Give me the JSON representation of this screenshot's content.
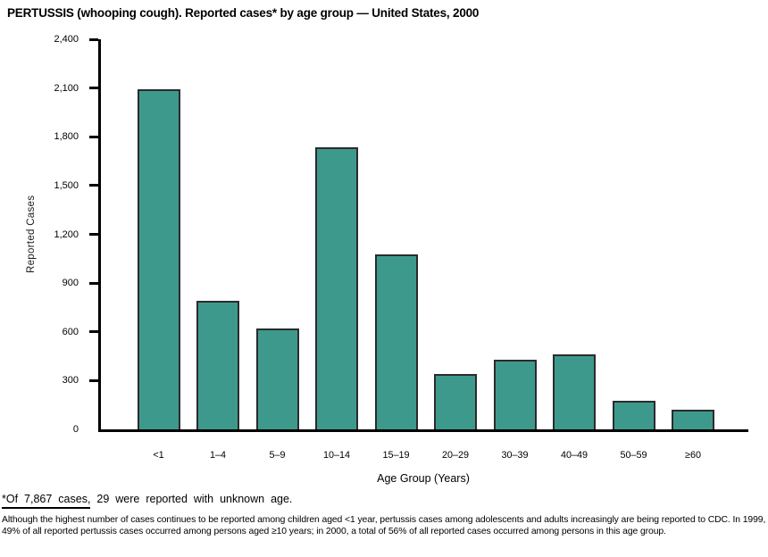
{
  "title": "PERTUSSIS (whooping cough). Reported cases* by age group — United States, 2000",
  "chart_data": {
    "type": "bar",
    "title": "PERTUSSIS (whooping cough). Reported cases* by age group — United States, 2000",
    "categories": [
      "<1",
      "1–4",
      "5–9",
      "10–14",
      "15–19",
      "20–29",
      "30–39",
      "40–49",
      "50–59",
      "≥60"
    ],
    "values": [
      2095,
      790,
      620,
      1735,
      1075,
      340,
      430,
      460,
      175,
      120
    ],
    "xlabel": "Age Group (Years)",
    "ylabel": "Reported Cases",
    "ylim": [
      0,
      2400
    ],
    "ytick_interval": 300,
    "ytick_labels": [
      "0",
      "300",
      "600",
      "900",
      "1,200",
      "1,500",
      "1,800",
      "2,100",
      "2,400"
    ],
    "grid": false,
    "legend": false,
    "bar_color": "#3e998d",
    "bar_border_color": "#2b2b2b",
    "axis_color": "#000000"
  },
  "footnote": {
    "underlined_part": "*Of 7,867 cases,",
    "rest": " 29 were reported with unknown age."
  },
  "note_paragraph": "Although the highest number of cases continues to be reported among children aged <1 year, pertussis cases among adolescents and adults increasingly are being reported to CDC. In 1999, 49% of all reported pertussis cases occurred among persons aged ≥10 years; in 2000, a total of 56% of all reported cases occurred among persons in this age group."
}
